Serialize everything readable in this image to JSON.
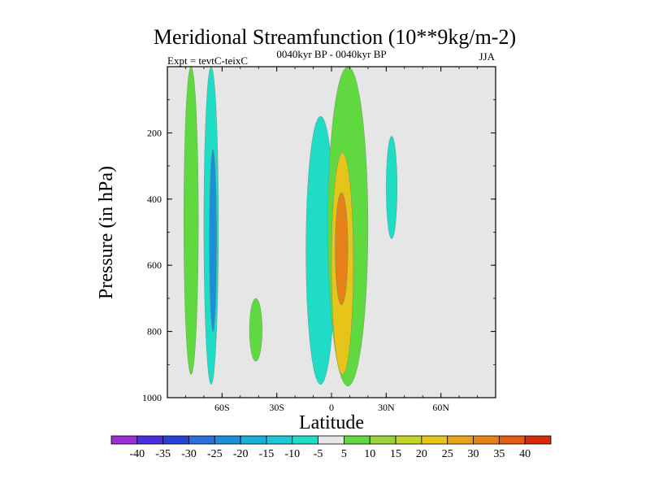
{
  "chart_data": {
    "type": "heatmap",
    "title": "Meridional Streamfunction (10**9kg/m-2)",
    "left_string": "Expt = tevtC-teixC",
    "center_string": "0040kyr BP - 0040kyr BP",
    "right_string": "JJA",
    "xlabel": "Latitude",
    "ylabel": "Pressure (in hPa)",
    "xlim": [
      -90,
      90
    ],
    "ylim": [
      1000,
      0
    ],
    "x_ticks": [
      {
        "value": -60,
        "label": "60S"
      },
      {
        "value": -30,
        "label": "30S"
      },
      {
        "value": 0,
        "label": "0"
      },
      {
        "value": 30,
        "label": "30N"
      },
      {
        "value": 60,
        "label": "60N"
      }
    ],
    "y_ticks": [
      {
        "value": 200,
        "label": "200"
      },
      {
        "value": 400,
        "label": "400"
      },
      {
        "value": 600,
        "label": "600"
      },
      {
        "value": 800,
        "label": "800"
      },
      {
        "value": 1000,
        "label": "1000"
      }
    ],
    "background_color": "#e6e6e6",
    "colorbar": {
      "labels": [
        "-40",
        "-35",
        "-30",
        "-25",
        "-20",
        "-15",
        "-10",
        "-5",
        "5",
        "10",
        "15",
        "20",
        "25",
        "30",
        "35",
        "40"
      ],
      "colors": [
        "#9b2cd6",
        "#4b2ee0",
        "#2642d8",
        "#2e6fe0",
        "#1d8fd8",
        "#19aede",
        "#1ec6d6",
        "#1fdcc6",
        "#e6e6e6",
        "#60d840",
        "#9ad23a",
        "#c4d426",
        "#e6c41a",
        "#e6a41a",
        "#e68018",
        "#e45a14",
        "#d82a0c"
      ]
    },
    "features": [
      {
        "name": "green-band-sh-high",
        "level": 5,
        "lat_range": [
          -81,
          -73
        ],
        "p_range": [
          0,
          930
        ]
      },
      {
        "name": "cyan-band-sh-mid",
        "level": -5,
        "lat_range": [
          -70,
          -62
        ],
        "p_range": [
          0,
          960
        ]
      },
      {
        "name": "blue-core-sh",
        "level": -20,
        "lat_range": [
          -67,
          -63
        ],
        "p_range": [
          250,
          800
        ]
      },
      {
        "name": "green-patch-40s",
        "level": 5,
        "lat_range": [
          -45,
          -38
        ],
        "p_range": [
          700,
          890
        ]
      },
      {
        "name": "cyan-plume-tropics",
        "level": -5,
        "lat_range": [
          -14,
          2
        ],
        "p_range": [
          150,
          960
        ]
      },
      {
        "name": "green-band-tropics",
        "level": 5,
        "lat_range": [
          -2,
          20
        ],
        "p_range": [
          0,
          965
        ]
      },
      {
        "name": "yellow-core",
        "level": 20,
        "lat_range": [
          0,
          12
        ],
        "p_range": [
          260,
          930
        ]
      },
      {
        "name": "orange-core",
        "level": 30,
        "lat_range": [
          2,
          9
        ],
        "p_range": [
          380,
          720
        ]
      },
      {
        "name": "cyan-patch-30n",
        "level": -5,
        "lat_range": [
          30,
          36
        ],
        "p_range": [
          210,
          520
        ]
      }
    ]
  }
}
